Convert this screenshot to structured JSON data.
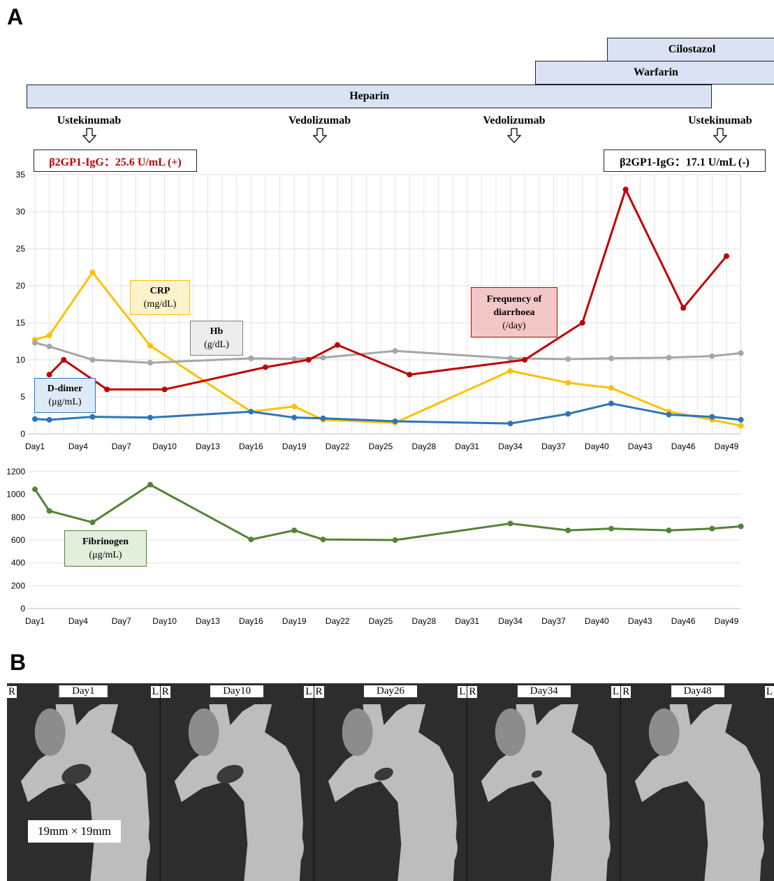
{
  "panels": {
    "a": "A",
    "b": "B"
  },
  "drugs": {
    "bars": [
      {
        "name": "Heparin",
        "start": 1,
        "end": 48
      },
      {
        "name": "Warfarin",
        "start": 35.7,
        "end": 52.5
      },
      {
        "name": "Cilostazol",
        "start": 40.7,
        "end": 52.5
      }
    ],
    "injections": [
      {
        "name": "Ustekinumab",
        "day": 5
      },
      {
        "name": "Vedolizumab",
        "day": 21
      },
      {
        "name": "Vedolizumab",
        "day": 34.5
      },
      {
        "name": "Ustekinumab",
        "day": 48.8
      }
    ]
  },
  "b2gp1": {
    "before": "β2GP1-IgG：25.6 U/mL (+)",
    "after": "β2GP1-IgG：17.1 U/mL (-)"
  },
  "chart_data": [
    {
      "type": "line",
      "xlabel": "",
      "ylabel": "",
      "xlim": [
        1,
        49
      ],
      "ylim": [
        0,
        35
      ],
      "yticks": [
        0,
        5,
        10,
        15,
        20,
        25,
        30,
        35
      ],
      "xticks": [
        "Day1",
        "Day4",
        "Day7",
        "Day10",
        "Day13",
        "Day16",
        "Day19",
        "Day22",
        "Day25",
        "Day28",
        "Day31",
        "Day34",
        "Day37",
        "Day40",
        "Day43",
        "Day46",
        "Day49"
      ],
      "grid": true,
      "series": [
        {
          "name": "CRP",
          "unit": "(mg/dL)",
          "color": "#ffc000",
          "x": [
            1,
            2,
            5,
            9,
            16,
            19,
            21,
            26,
            34,
            38,
            41,
            45,
            48,
            50
          ],
          "y": [
            12.7,
            13.3,
            21.8,
            11.9,
            3.0,
            3.7,
            1.9,
            1.5,
            8.5,
            6.9,
            6.2,
            3.0,
            1.9,
            1.1
          ]
        },
        {
          "name": "Hb",
          "unit": "(g/dL)",
          "color": "#a6a6a6",
          "x": [
            1,
            2,
            5,
            9,
            16,
            19,
            21,
            26,
            34,
            38,
            41,
            45,
            48,
            50
          ],
          "y": [
            12.3,
            11.8,
            10.0,
            9.6,
            10.2,
            10.1,
            10.3,
            11.2,
            10.2,
            10.1,
            10.2,
            10.3,
            10.5,
            10.9
          ]
        },
        {
          "name": "Frequency of diarrhoea",
          "unit": "(/day)",
          "color": "#c00000",
          "x": [
            2,
            3,
            6,
            10,
            17,
            20,
            22,
            27,
            35,
            39,
            42,
            46,
            49
          ],
          "y": [
            8.0,
            10.0,
            6.0,
            6.0,
            9.0,
            10.0,
            12.0,
            8.0,
            10.0,
            15.0,
            33.0,
            17.0,
            24.0
          ]
        },
        {
          "name": "D-dimer",
          "unit": "(μg/mL)",
          "color": "#2e75b6",
          "x": [
            1,
            2,
            5,
            9,
            16,
            19,
            21,
            26,
            34,
            38,
            41,
            45,
            48,
            50
          ],
          "y": [
            2.0,
            1.9,
            2.3,
            2.2,
            3.0,
            2.2,
            2.1,
            1.7,
            1.4,
            2.7,
            4.1,
            2.6,
            2.3,
            1.9
          ]
        }
      ]
    },
    {
      "type": "line",
      "xlabel": "",
      "ylabel": "",
      "xlim": [
        1,
        49
      ],
      "ylim": [
        0,
        1200
      ],
      "yticks": [
        0,
        200,
        400,
        600,
        800,
        1000,
        1200
      ],
      "xticks": [
        "Day1",
        "Day4",
        "Day7",
        "Day10",
        "Day13",
        "Day16",
        "Day19",
        "Day22",
        "Day25",
        "Day28",
        "Day31",
        "Day34",
        "Day37",
        "Day40",
        "Day43",
        "Day46",
        "Day49"
      ],
      "grid": false,
      "series": [
        {
          "name": "Fibrinogen",
          "unit": "(μg/mL)",
          "color": "#548235",
          "x": [
            1,
            2,
            5,
            9,
            16,
            19,
            21,
            26,
            34,
            38,
            41,
            45,
            48,
            50
          ],
          "y": [
            1045,
            855,
            755,
            1085,
            605,
            685,
            605,
            600,
            745,
            685,
            700,
            685,
            700,
            720
          ]
        }
      ]
    }
  ],
  "ct": {
    "frames": [
      "Day1",
      "Day10",
      "Day26",
      "Day34",
      "Day48"
    ],
    "right": "R",
    "left": "L",
    "measurement": "19mm × 19mm"
  }
}
